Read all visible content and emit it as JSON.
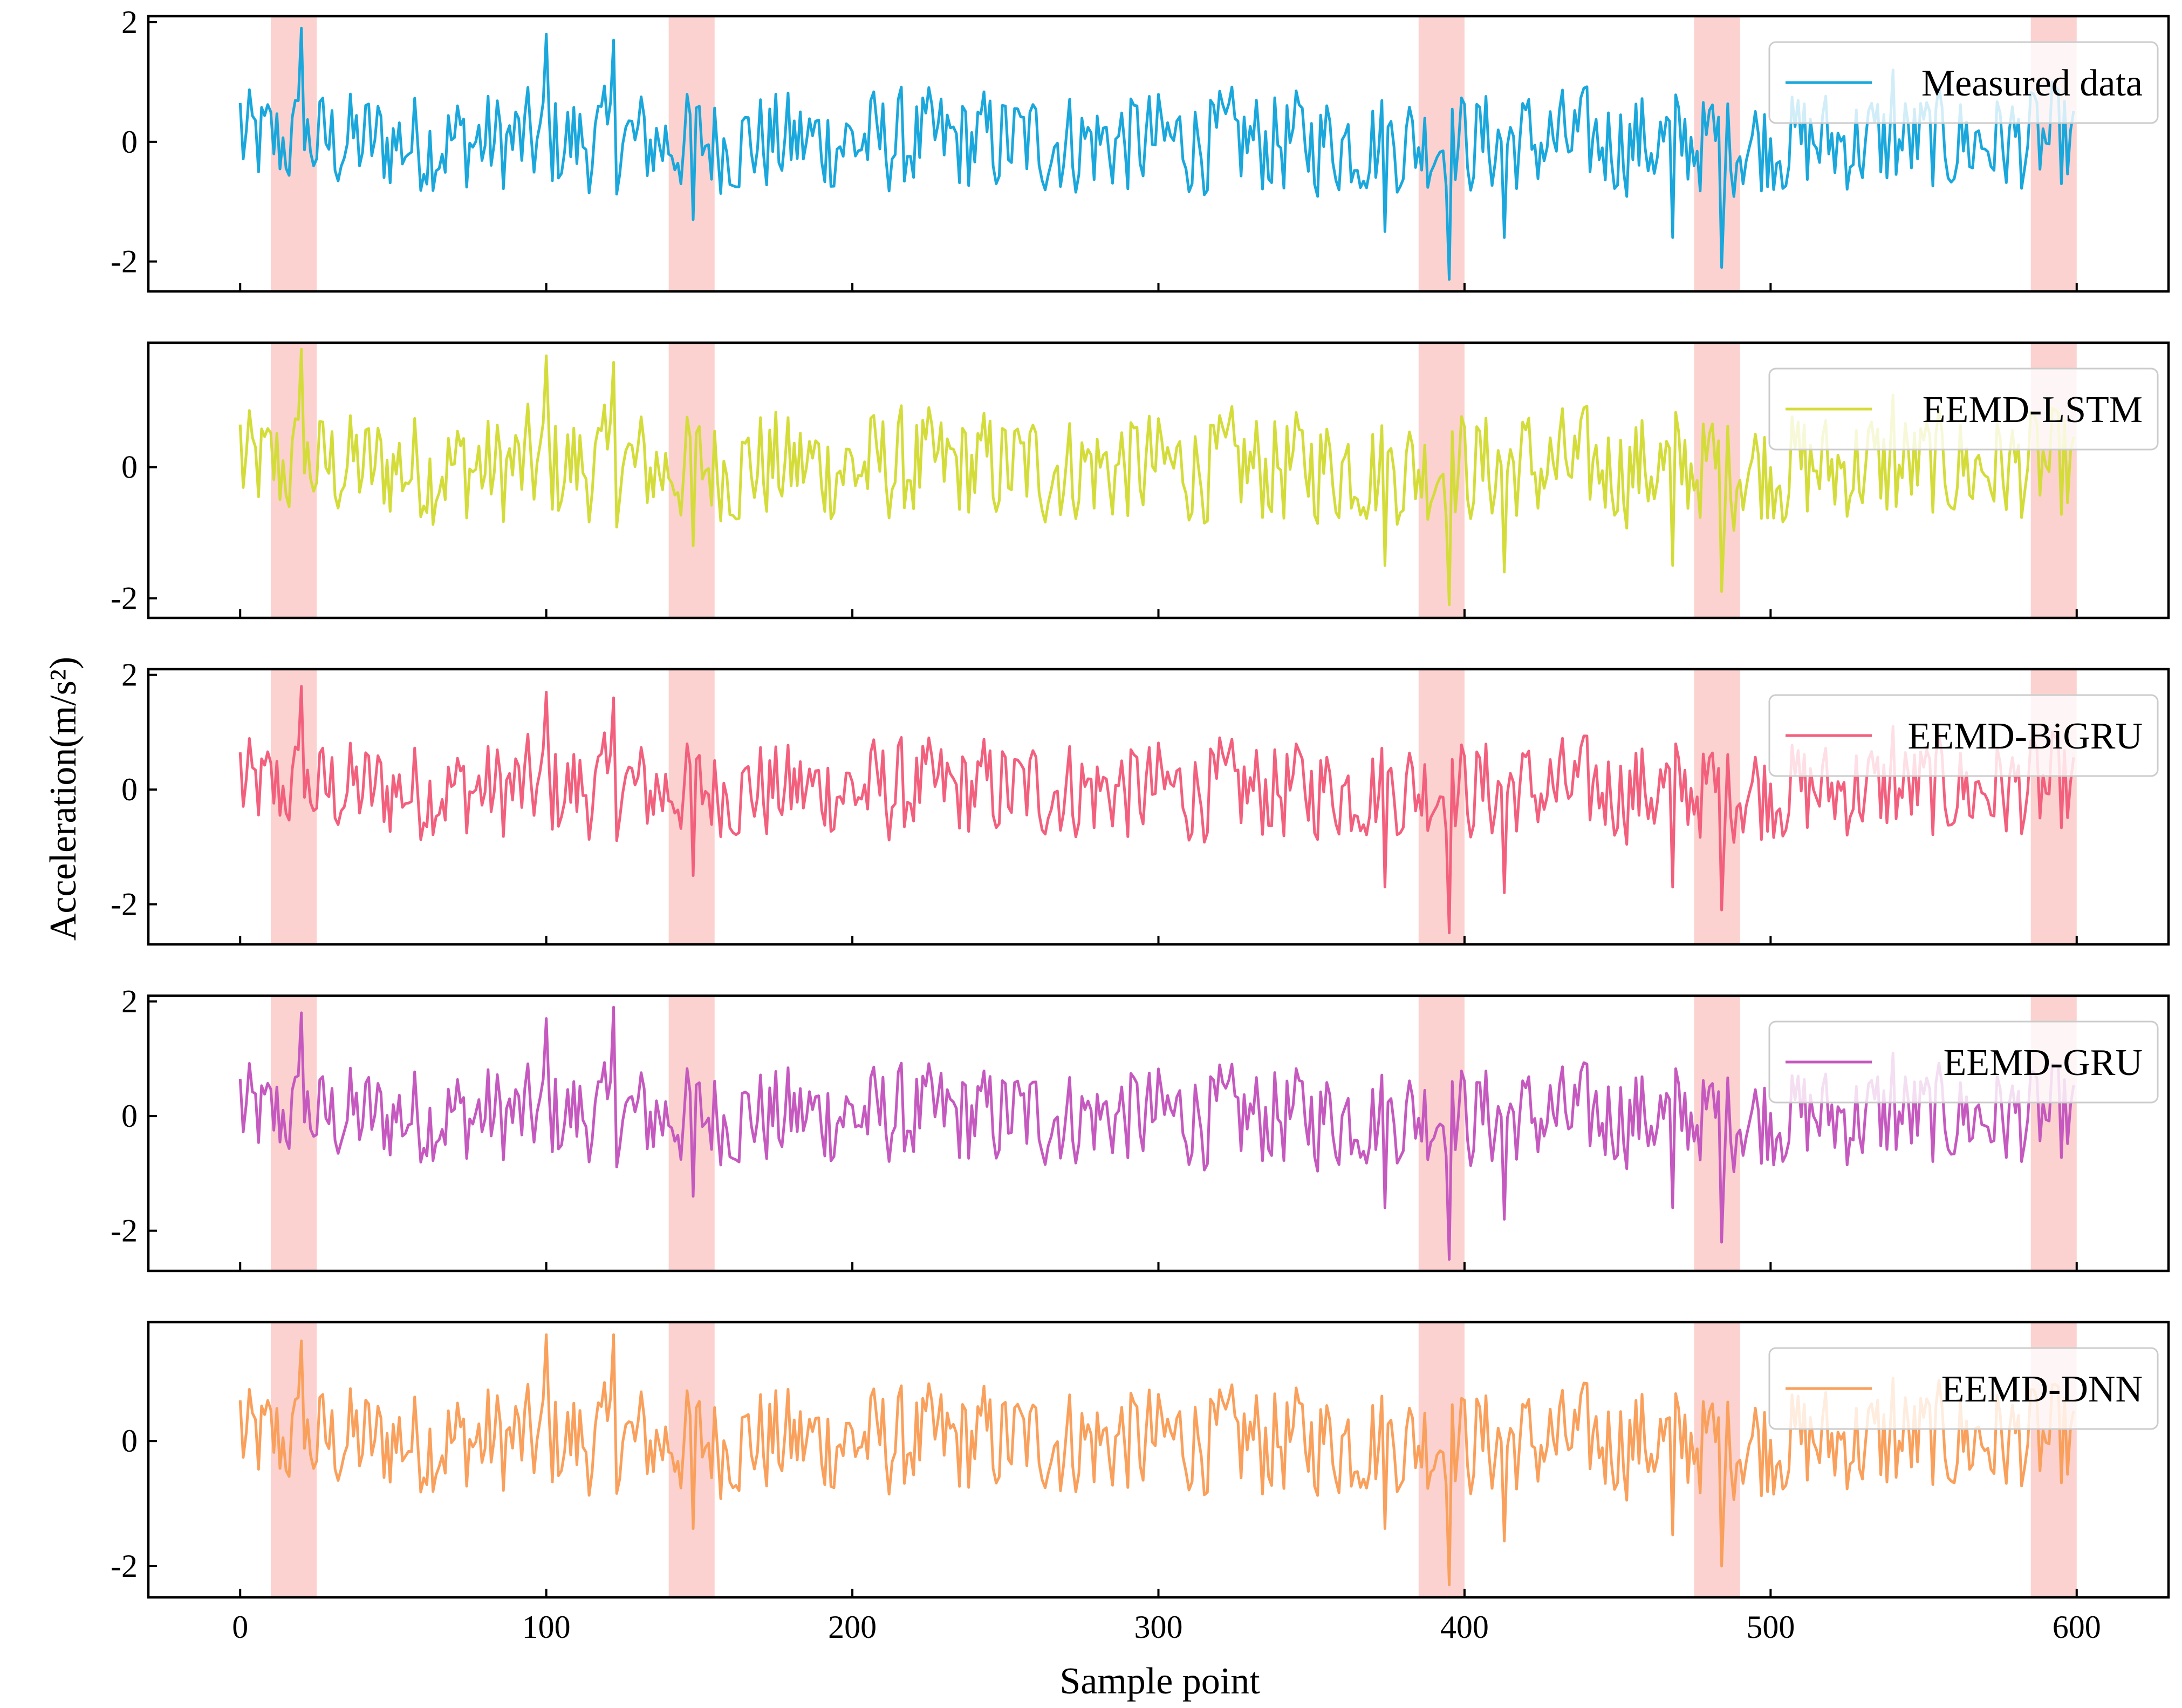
{
  "chart_data": {
    "type": "line",
    "layout": "5 vertically stacked panels sharing the x axis",
    "xlabel": "Sample point",
    "ylabel": "Acceleration(m/s²)",
    "xlim": [
      -30,
      630
    ],
    "xticks": [
      0,
      100,
      200,
      300,
      400,
      500,
      600
    ],
    "highlight_regions": [
      [
        10,
        25
      ],
      [
        140,
        155
      ],
      [
        385,
        400
      ],
      [
        475,
        490
      ],
      [
        585,
        600
      ]
    ],
    "highlight_color": "#f7a6a0",
    "legend_position": "top-right",
    "panels": [
      {
        "name": "Measured data",
        "color": "#1aa7dc",
        "ylim": [
          -2.5,
          2.1
        ],
        "yticks": [
          -2,
          0,
          2
        ],
        "peaks": [
          [
            20,
            1.9
          ],
          [
            100,
            1.8
          ],
          [
            122,
            1.7
          ],
          [
            148,
            -1.3
          ],
          [
            374,
            -1.5
          ],
          [
            395,
            -2.3
          ],
          [
            413,
            -1.6
          ],
          [
            468,
            -1.6
          ],
          [
            484,
            -2.1
          ],
          [
            540,
            1.2
          ],
          [
            592,
            1.0
          ]
        ]
      },
      {
        "name": "EEMD-LSTM",
        "color": "#d4dc3a",
        "ylim": [
          -2.3,
          1.9
        ],
        "yticks": [
          -2,
          0
        ],
        "peaks": [
          [
            20,
            1.8
          ],
          [
            100,
            1.7
          ],
          [
            122,
            1.6
          ],
          [
            148,
            -1.2
          ],
          [
            374,
            -1.5
          ],
          [
            395,
            -2.1
          ],
          [
            413,
            -1.6
          ],
          [
            468,
            -1.5
          ],
          [
            484,
            -1.9
          ],
          [
            540,
            1.1
          ],
          [
            592,
            0.9
          ]
        ]
      },
      {
        "name": "EEMD-BiGRU",
        "color": "#f2607e",
        "ylim": [
          -2.7,
          2.1
        ],
        "yticks": [
          -2,
          0,
          2
        ],
        "peaks": [
          [
            20,
            1.8
          ],
          [
            100,
            1.7
          ],
          [
            122,
            1.6
          ],
          [
            148,
            -1.5
          ],
          [
            374,
            -1.7
          ],
          [
            395,
            -2.5
          ],
          [
            413,
            -1.8
          ],
          [
            468,
            -1.7
          ],
          [
            484,
            -2.1
          ],
          [
            540,
            1.1
          ],
          [
            592,
            1.0
          ]
        ]
      },
      {
        "name": "EEMD-GRU",
        "color": "#c559bf",
        "ylim": [
          -2.7,
          2.1
        ],
        "yticks": [
          -2,
          0,
          2
        ],
        "peaks": [
          [
            20,
            1.8
          ],
          [
            100,
            1.7
          ],
          [
            122,
            1.9
          ],
          [
            148,
            -1.4
          ],
          [
            374,
            -1.6
          ],
          [
            395,
            -2.5
          ],
          [
            413,
            -1.8
          ],
          [
            468,
            -1.6
          ],
          [
            484,
            -2.2
          ],
          [
            540,
            1.1
          ],
          [
            592,
            0.9
          ]
        ]
      },
      {
        "name": "EEMD-DNN",
        "color": "#f9a05c",
        "ylim": [
          -2.5,
          1.9
        ],
        "yticks": [
          -2,
          0
        ],
        "peaks": [
          [
            20,
            1.6
          ],
          [
            100,
            1.7
          ],
          [
            122,
            1.7
          ],
          [
            148,
            -1.4
          ],
          [
            374,
            -1.4
          ],
          [
            395,
            -2.3
          ],
          [
            413,
            -1.6
          ],
          [
            468,
            -1.5
          ],
          [
            484,
            -2.0
          ],
          [
            540,
            1.0
          ],
          [
            592,
            0.9
          ]
        ]
      }
    ],
    "series_note": "Each panel plots 600 noisy acceleration samples (visual range roughly -1 to +1 with the listed spikes); the same underlying measured signal is reproduced by each model."
  }
}
